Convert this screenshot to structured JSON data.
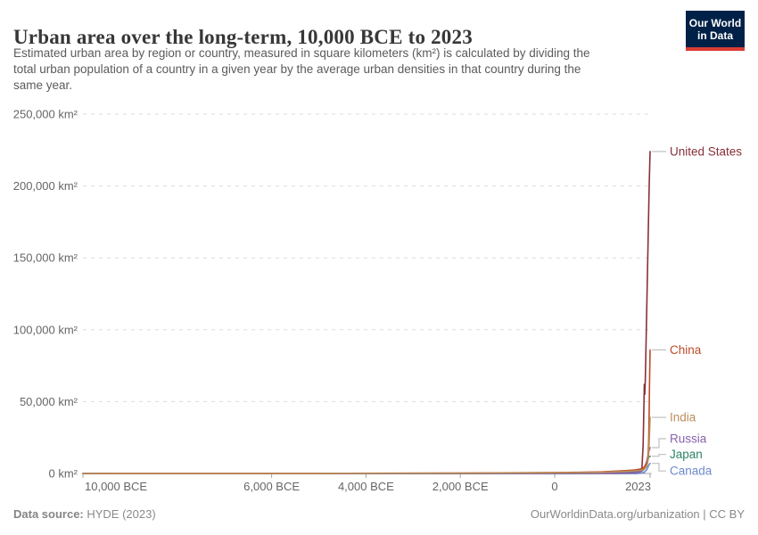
{
  "header": {
    "title": "Urban area over the long-term, 10,000 BCE to 2023",
    "subtitle_lines": [
      "Estimated urban area by region or country, measured in square kilometers (km²) is calculated by dividing the",
      "total urban population of a country in a given year by the average urban densities in that country during the",
      "same year."
    ],
    "logo": {
      "line1": "Our World",
      "line2": "in Data",
      "bg_color": "#002147",
      "accent_color": "#D93C34"
    }
  },
  "footer": {
    "source_label": "Data source:",
    "source_value": " HYDE (2023)",
    "license_text": "OurWorldinData.org/urbanization | CC BY"
  },
  "chart_data": {
    "type": "line",
    "title": "Urban area over the long-term, 10,000 BCE to 2023",
    "xlabel": "",
    "ylabel": "km²",
    "xlim": [
      -10000,
      2023
    ],
    "ylim": [
      0,
      250000
    ],
    "grid": "horizontal-dashed",
    "legend_position": "right-edge-labels",
    "x_ticks": [
      {
        "value": -10000,
        "label": "10,000 BCE"
      },
      {
        "value": -6000,
        "label": "6,000 BCE"
      },
      {
        "value": -4000,
        "label": "4,000 BCE"
      },
      {
        "value": -2000,
        "label": "2,000 BCE"
      },
      {
        "value": 0,
        "label": "0"
      },
      {
        "value": 2023,
        "label": "2023"
      }
    ],
    "y_ticks": [
      {
        "value": 0,
        "label": "0 km²"
      },
      {
        "value": 50000,
        "label": "50,000 km²"
      },
      {
        "value": 100000,
        "label": "100,000 km²"
      },
      {
        "value": 150000,
        "label": "150,000 km²"
      },
      {
        "value": 200000,
        "label": "200,000 km²"
      },
      {
        "value": 250000,
        "label": "250,000 km²"
      }
    ],
    "series": [
      {
        "name": "United States",
        "color": "#883039",
        "points": [
          [
            -10000,
            0
          ],
          [
            -5000,
            0
          ],
          [
            -2000,
            0
          ],
          [
            0,
            0
          ],
          [
            500,
            0
          ],
          [
            1000,
            0
          ],
          [
            1500,
            0
          ],
          [
            1600,
            5
          ],
          [
            1700,
            40
          ],
          [
            1750,
            90
          ],
          [
            1800,
            400
          ],
          [
            1850,
            3000
          ],
          [
            1875,
            20000
          ],
          [
            1890,
            45000
          ],
          [
            1900,
            62000
          ],
          [
            1910,
            55000
          ],
          [
            1920,
            64000
          ],
          [
            1950,
            110000
          ],
          [
            1980,
            160000
          ],
          [
            2000,
            195000
          ],
          [
            2010,
            208000
          ],
          [
            2023,
            224000
          ]
        ]
      },
      {
        "name": "China",
        "color": "#BC4B28",
        "points": [
          [
            -10000,
            10
          ],
          [
            -5000,
            80
          ],
          [
            -2000,
            300
          ],
          [
            0,
            700
          ],
          [
            500,
            800
          ],
          [
            1000,
            1100
          ],
          [
            1500,
            2000
          ],
          [
            1700,
            2500
          ],
          [
            1800,
            3000
          ],
          [
            1850,
            3500
          ],
          [
            1900,
            4500
          ],
          [
            1950,
            7000
          ],
          [
            1960,
            8000
          ],
          [
            1980,
            12000
          ],
          [
            1990,
            20000
          ],
          [
            2000,
            35000
          ],
          [
            2010,
            60000
          ],
          [
            2023,
            86000
          ]
        ]
      },
      {
        "name": "India",
        "color": "#BC8E5A",
        "points": [
          [
            -10000,
            5
          ],
          [
            -5000,
            50
          ],
          [
            -2000,
            250
          ],
          [
            0,
            500
          ],
          [
            500,
            600
          ],
          [
            1000,
            800
          ],
          [
            1500,
            1400
          ],
          [
            1700,
            1800
          ],
          [
            1800,
            2200
          ],
          [
            1850,
            2500
          ],
          [
            1900,
            3000
          ],
          [
            1950,
            5000
          ],
          [
            1970,
            7500
          ],
          [
            1990,
            13000
          ],
          [
            2000,
            18000
          ],
          [
            2010,
            27000
          ],
          [
            2023,
            39000
          ]
        ]
      },
      {
        "name": "Russia",
        "color": "#8861AB",
        "points": [
          [
            -10000,
            0
          ],
          [
            -2000,
            20
          ],
          [
            0,
            60
          ],
          [
            1000,
            200
          ],
          [
            1500,
            400
          ],
          [
            1700,
            700
          ],
          [
            1800,
            1200
          ],
          [
            1850,
            1800
          ],
          [
            1900,
            4000
          ],
          [
            1950,
            8000
          ],
          [
            1970,
            11000
          ],
          [
            1990,
            15000
          ],
          [
            2000,
            15500
          ],
          [
            2023,
            18000
          ]
        ]
      },
      {
        "name": "Japan",
        "color": "#2C8465",
        "points": [
          [
            -10000,
            0
          ],
          [
            0,
            30
          ],
          [
            1000,
            200
          ],
          [
            1500,
            500
          ],
          [
            1700,
            1200
          ],
          [
            1800,
            1500
          ],
          [
            1850,
            1700
          ],
          [
            1900,
            3000
          ],
          [
            1950,
            5000
          ],
          [
            1970,
            8500
          ],
          [
            1990,
            11000
          ],
          [
            2000,
            11500
          ],
          [
            2023,
            12000
          ]
        ]
      },
      {
        "name": "Canada",
        "color": "#6D8ACD",
        "points": [
          [
            -10000,
            0
          ],
          [
            1600,
            0
          ],
          [
            1700,
            10
          ],
          [
            1800,
            120
          ],
          [
            1850,
            400
          ],
          [
            1900,
            800
          ],
          [
            1950,
            2500
          ],
          [
            1980,
            4500
          ],
          [
            2000,
            6000
          ],
          [
            2023,
            7000
          ]
        ]
      }
    ]
  }
}
